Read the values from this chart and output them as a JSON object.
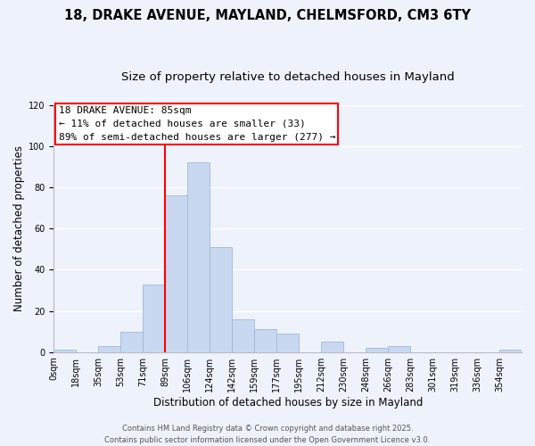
{
  "title": "18, DRAKE AVENUE, MAYLAND, CHELMSFORD, CM3 6TY",
  "subtitle": "Size of property relative to detached houses in Mayland",
  "xlabel": "Distribution of detached houses by size in Mayland",
  "ylabel": "Number of detached properties",
  "bar_color": "#c8d8f0",
  "bar_edge_color": "#a0b8d8",
  "background_color": "#eef2fb",
  "grid_color": "#ffffff",
  "bin_labels": [
    "0sqm",
    "18sqm",
    "35sqm",
    "53sqm",
    "71sqm",
    "89sqm",
    "106sqm",
    "124sqm",
    "142sqm",
    "159sqm",
    "177sqm",
    "195sqm",
    "212sqm",
    "230sqm",
    "248sqm",
    "266sqm",
    "283sqm",
    "301sqm",
    "319sqm",
    "336sqm",
    "354sqm"
  ],
  "bar_heights": [
    1,
    0,
    3,
    10,
    33,
    76,
    92,
    51,
    16,
    11,
    9,
    0,
    5,
    0,
    2,
    3,
    0,
    0,
    0,
    0,
    1
  ],
  "ylim": [
    0,
    120
  ],
  "yticks": [
    0,
    20,
    40,
    60,
    80,
    100,
    120
  ],
  "annotation_title": "18 DRAKE AVENUE: 85sqm",
  "annotation_line1": "← 11% of detached houses are smaller (33)",
  "annotation_line2": "89% of semi-detached houses are larger (277) →",
  "footer_line1": "Contains HM Land Registry data © Crown copyright and database right 2025.",
  "footer_line2": "Contains public sector information licensed under the Open Government Licence v3.0.",
  "title_fontsize": 10.5,
  "subtitle_fontsize": 9.5,
  "axis_label_fontsize": 8.5,
  "tick_fontsize": 7,
  "annotation_fontsize": 8,
  "footer_fontsize": 6
}
